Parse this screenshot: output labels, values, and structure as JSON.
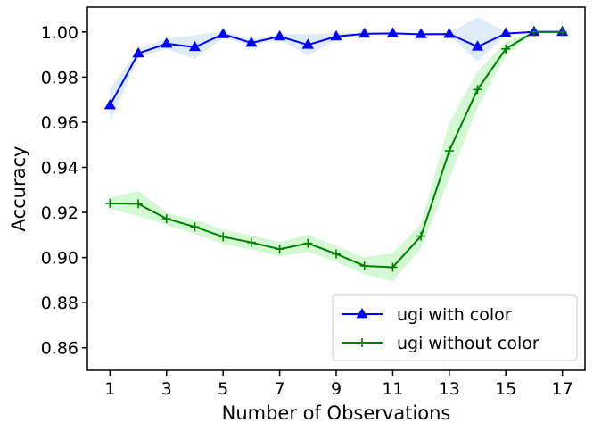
{
  "chart_data": {
    "type": "line",
    "title": "",
    "xlabel": "Number of Observations",
    "ylabel": "Accuracy",
    "xlim": [
      0.2,
      17.8
    ],
    "ylim": [
      0.85,
      1.011
    ],
    "xticks": [
      1,
      3,
      5,
      7,
      9,
      11,
      13,
      15,
      17
    ],
    "xtick_labels": [
      "1",
      "3",
      "5",
      "7",
      "9",
      "11",
      "13",
      "15",
      "17"
    ],
    "yticks": [
      0.86,
      0.88,
      0.9,
      0.92,
      0.94,
      0.96,
      0.98,
      1.0
    ],
    "ytick_labels": [
      "0.86",
      "0.88",
      "0.90",
      "0.92",
      "0.94",
      "0.96",
      "0.98",
      "1.00"
    ],
    "grid": false,
    "legend_position": "bottom-right",
    "x": [
      1,
      2,
      3,
      4,
      5,
      6,
      7,
      8,
      9,
      10,
      11,
      12,
      13,
      14,
      15,
      16,
      17
    ],
    "series": [
      {
        "name": "ugi with color",
        "color": "#0000ff",
        "band_color": "#9ec9e8",
        "marker": "triangle",
        "values": [
          0.9675,
          0.9905,
          0.9948,
          0.9933,
          0.999,
          0.9952,
          0.998,
          0.9943,
          0.998,
          0.9992,
          0.9994,
          0.999,
          0.9991,
          0.9935,
          0.9993,
          1.0,
          1.0
        ],
        "lower": [
          0.96,
          0.9885,
          0.9925,
          0.988,
          0.9975,
          0.9938,
          0.9968,
          0.9895,
          0.9965,
          0.9988,
          0.999,
          0.9984,
          0.9986,
          0.987,
          0.9985,
          1.0,
          1.0
        ],
        "upper": [
          0.9745,
          0.9925,
          0.997,
          0.9985,
          1.0005,
          0.9966,
          0.9992,
          0.999,
          0.9995,
          0.9996,
          0.9998,
          0.9996,
          0.9996,
          1.0065,
          1.0001,
          1.0,
          1.0
        ]
      },
      {
        "name": "ugi without color",
        "color": "#008000",
        "band_color": "#90ee90",
        "marker": "plus",
        "values": [
          0.924,
          0.9238,
          0.9172,
          0.9136,
          0.9092,
          0.9067,
          0.9037,
          0.9063,
          0.9016,
          0.8963,
          0.8957,
          0.9095,
          0.9473,
          0.9745,
          0.9925,
          1.0,
          1.0
        ],
        "lower": [
          0.9215,
          0.9185,
          0.9145,
          0.9105,
          0.906,
          0.9035,
          0.9005,
          0.9025,
          0.898,
          0.8925,
          0.8895,
          0.904,
          0.935,
          0.9665,
          0.9895,
          1.0,
          1.0
        ],
        "upper": [
          0.9265,
          0.9295,
          0.92,
          0.9167,
          0.9124,
          0.9099,
          0.9069,
          0.9101,
          0.9052,
          0.9001,
          0.9019,
          0.915,
          0.9596,
          0.9825,
          0.9955,
          1.0,
          1.0
        ]
      }
    ]
  }
}
